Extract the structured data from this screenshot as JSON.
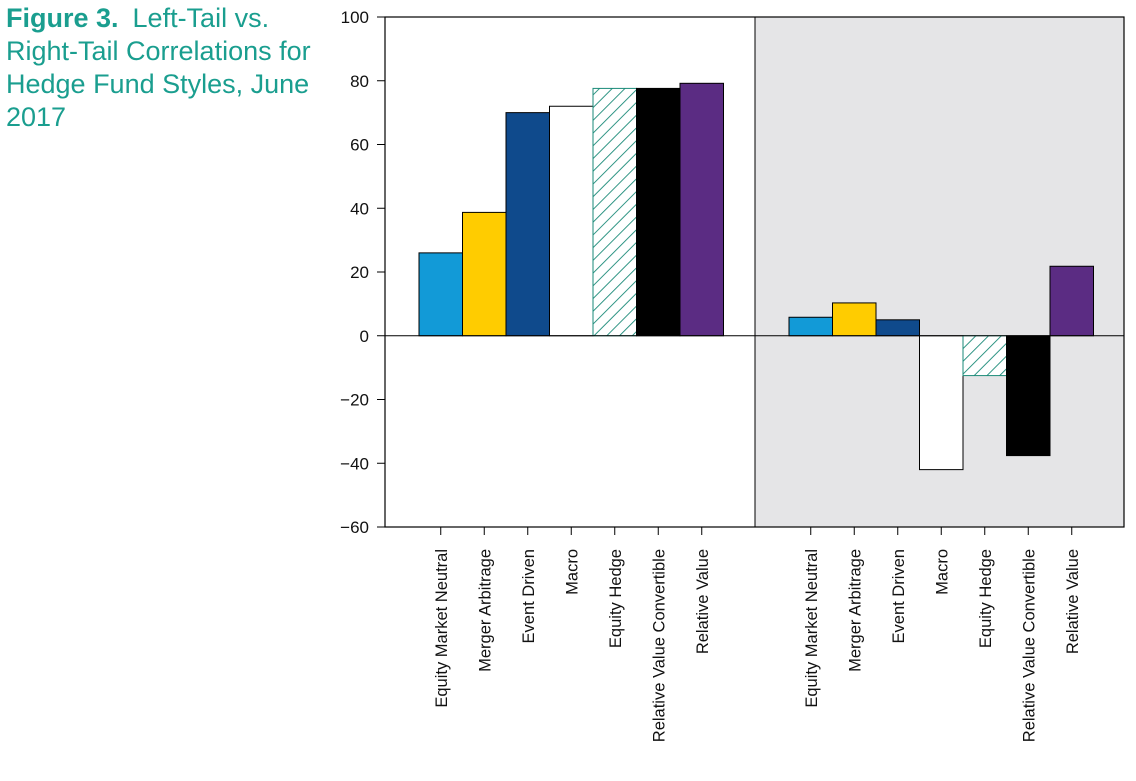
{
  "caption": {
    "figure_label": "Figure 3.",
    "title": "Left-Tail vs. Right-Tail Correlations for Hedge Fund Styles, June 2017"
  },
  "colors": {
    "caption": "#1a9e8f",
    "panel_right_bg": "#e5e5e7",
    "hatch": "#1a8a78"
  },
  "chart_data": {
    "type": "bar",
    "title": "Left-Tail vs. Right-Tail Correlations for Hedge Fund Styles, June 2017",
    "xlabel": "",
    "ylabel": "",
    "ylim": [
      -60,
      100
    ],
    "yticks": [
      100,
      80,
      60,
      40,
      20,
      0,
      -20,
      -40,
      -60
    ],
    "ytick_labels": [
      "100",
      "80",
      "60",
      "40",
      "20",
      "0",
      "−20",
      "−40",
      "−60"
    ],
    "grid": false,
    "legend": "none",
    "categories": [
      "Equity Market Neutral",
      "Merger Arbitrage",
      "Event Driven",
      "Macro",
      "Equity Hedge",
      "Relative Value Convertible",
      "Relative Value"
    ],
    "styles": [
      {
        "fill": "#129ad7",
        "pattern": "solid"
      },
      {
        "fill": "#ffcc00",
        "pattern": "solid"
      },
      {
        "fill": "#0f4a8c",
        "pattern": "solid"
      },
      {
        "fill": "#ffffff",
        "pattern": "solid"
      },
      {
        "fill": "#ffffff",
        "pattern": "hatch"
      },
      {
        "fill": "#000000",
        "pattern": "solid"
      },
      {
        "fill": "#5b2c83",
        "pattern": "solid"
      }
    ],
    "panels": [
      {
        "name": "Left Tail",
        "shaded": false,
        "values": [
          26,
          38.7,
          70,
          72,
          77.6,
          77.6,
          79.2
        ]
      },
      {
        "name": "Right Tail",
        "shaded": true,
        "values": [
          5.8,
          10.3,
          5,
          -42,
          -12.5,
          -37.6,
          21.8
        ]
      }
    ]
  }
}
